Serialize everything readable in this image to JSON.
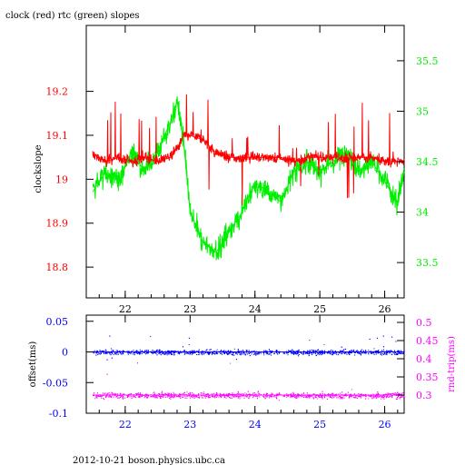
{
  "title": "clock (red) rtc (green) slopes",
  "footer": "2012-10-21 boson.physics.ubc.ca",
  "colors": {
    "clock": "#ff0000",
    "rtc": "#00ee00",
    "offset": "#0000ff",
    "rtt": "#ff00ff",
    "axis": "#000000"
  },
  "chart_data": [
    {
      "type": "line",
      "title": "clock (red) rtc (green) slopes",
      "xlim": [
        21.4,
        26.3
      ],
      "x_ticks": [
        "22",
        "23",
        "24",
        "25",
        "26"
      ],
      "x_tick_values": [
        22,
        23,
        24,
        25,
        26
      ],
      "y_left": {
        "label": "clockslope",
        "lim": [
          18.73,
          19.35
        ],
        "ticks": [
          "18.8",
          "18.9",
          "19",
          "19.1",
          "19.2"
        ],
        "tick_values": [
          18.8,
          18.9,
          19.0,
          19.1,
          19.2
        ],
        "color": "#ff0000"
      },
      "y_right": {
        "label": "",
        "lim": [
          33.15,
          35.85
        ],
        "ticks": [
          "33.5",
          "34",
          "34.5",
          "35",
          "35.5"
        ],
        "tick_values": [
          33.5,
          34.0,
          34.5,
          35.0,
          35.5
        ],
        "color": "#00ee00"
      },
      "series": [
        {
          "name": "clock",
          "axis": "left",
          "x": [
            21.5,
            21.7,
            21.9,
            22.1,
            22.3,
            22.5,
            22.7,
            22.8,
            22.9,
            23.0,
            23.2,
            23.4,
            23.6,
            23.8,
            24.0,
            24.2,
            24.4,
            24.6,
            24.8,
            25.0,
            25.2,
            25.4,
            25.6,
            25.8,
            26.0,
            26.2,
            26.3
          ],
          "values": [
            19.06,
            19.04,
            19.05,
            19.04,
            19.05,
            19.04,
            19.05,
            19.07,
            19.1,
            19.1,
            19.09,
            19.06,
            19.05,
            19.05,
            19.05,
            19.05,
            19.05,
            19.04,
            19.05,
            19.05,
            19.05,
            19.05,
            19.05,
            19.05,
            19.04,
            19.04,
            19.04
          ]
        },
        {
          "name": "rtc",
          "axis": "right",
          "x": [
            21.5,
            21.7,
            21.9,
            22.1,
            22.3,
            22.5,
            22.7,
            22.8,
            22.9,
            23.0,
            23.2,
            23.4,
            23.6,
            23.8,
            24.0,
            24.2,
            24.4,
            24.6,
            24.8,
            25.0,
            25.2,
            25.4,
            25.6,
            25.8,
            26.0,
            26.2,
            26.3
          ],
          "values": [
            34.2,
            34.4,
            34.3,
            34.6,
            34.4,
            34.6,
            34.9,
            35.1,
            34.7,
            34.0,
            33.7,
            33.6,
            33.8,
            34.0,
            34.3,
            34.2,
            34.1,
            34.4,
            34.5,
            34.4,
            34.5,
            34.6,
            34.4,
            34.5,
            34.3,
            34.1,
            34.4
          ]
        }
      ]
    },
    {
      "type": "scatter",
      "xlim": [
        21.4,
        26.3
      ],
      "x_ticks": [
        "22",
        "23",
        "24",
        "25",
        "26"
      ],
      "x_tick_values": [
        22,
        23,
        24,
        25,
        26
      ],
      "y_left": {
        "label": "offset(ms)",
        "lim": [
          -0.1,
          0.06
        ],
        "ticks": [
          "0.05",
          "0",
          "-0.05",
          "-0.1"
        ],
        "tick_values": [
          0.05,
          0.0,
          -0.05,
          -0.1
        ],
        "color": "#0000ff"
      },
      "y_right": {
        "label": "rnd-trip(ms)",
        "lim": [
          0.25,
          0.52
        ],
        "ticks": [
          "0.5",
          "0.45",
          "0.4",
          "0.35",
          "0.3"
        ],
        "tick_values": [
          0.5,
          0.45,
          0.4,
          0.35,
          0.3
        ],
        "color": "#ff00ff"
      },
      "series": [
        {
          "name": "offset",
          "axis": "left",
          "x": [
            21.5,
            22.0,
            22.5,
            23.0,
            23.5,
            24.0,
            24.5,
            25.0,
            25.5,
            26.0,
            26.3
          ],
          "values": [
            0.0,
            0.0,
            0.0,
            0.0,
            0.0,
            0.0,
            0.0,
            0.0,
            0.0,
            0.0,
            0.0
          ]
        },
        {
          "name": "rnd-trip",
          "axis": "right",
          "x": [
            21.5,
            22.0,
            22.5,
            23.0,
            23.5,
            24.0,
            24.5,
            25.0,
            25.5,
            26.0,
            26.3
          ],
          "values": [
            0.3,
            0.3,
            0.3,
            0.3,
            0.3,
            0.3,
            0.3,
            0.3,
            0.3,
            0.3,
            0.3
          ]
        }
      ]
    }
  ]
}
